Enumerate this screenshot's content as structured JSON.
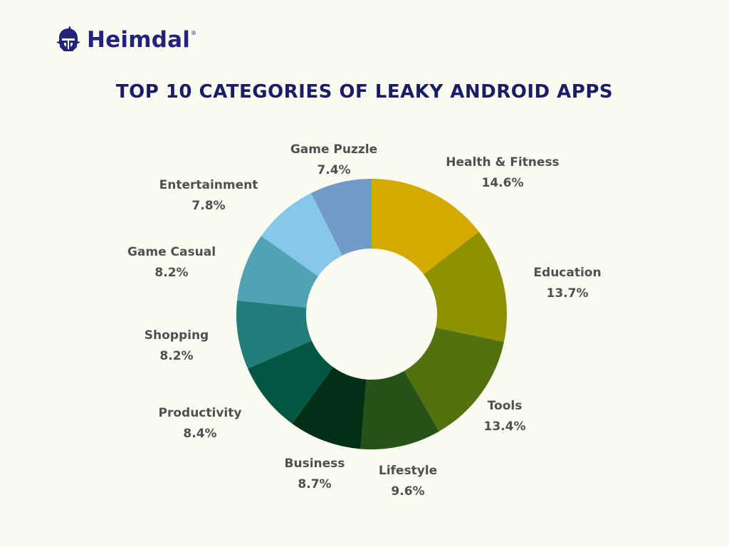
{
  "brand": {
    "name": "Heimdal",
    "registered_mark": "®",
    "logo_icon": "knight-helmet-icon"
  },
  "colors": {
    "background": "#fbfbf1",
    "brand": "#22237a",
    "title": "#1a1c66",
    "label": "#4f4f4f"
  },
  "chart_data": {
    "type": "pie",
    "donut": true,
    "title": "TOP 10 CATEGORIES OF LEAKY ANDROID APPS",
    "unit": "%",
    "start_angle_deg": 0,
    "direction": "clockwise",
    "legend": "none",
    "slices": [
      {
        "label": "Health & Fitness",
        "value": 14.6,
        "display": "14.6%",
        "color": "#d4aa00"
      },
      {
        "label": "Education",
        "value": 13.7,
        "display": "13.7%",
        "color": "#8f9200"
      },
      {
        "label": "Tools",
        "value": 13.4,
        "display": "13.4%",
        "color": "#53710f"
      },
      {
        "label": "Lifestyle",
        "value": 9.6,
        "display": "9.6%",
        "color": "#255217"
      },
      {
        "label": "Business",
        "value": 8.7,
        "display": "8.7%",
        "color": "#032f14"
      },
      {
        "label": "Productivity",
        "value": 8.4,
        "display": "8.4%",
        "color": "#035641"
      },
      {
        "label": "Shopping",
        "value": 8.2,
        "display": "8.2%",
        "color": "#227c79"
      },
      {
        "label": "Game Casual",
        "value": 8.2,
        "display": "8.2%",
        "color": "#4fa3b5"
      },
      {
        "label": "Entertainment",
        "value": 7.8,
        "display": "7.8%",
        "color": "#86c7ea"
      },
      {
        "label": "Game Puzzle",
        "value": 7.4,
        "display": "7.4%",
        "color": "#719cc8"
      }
    ]
  }
}
